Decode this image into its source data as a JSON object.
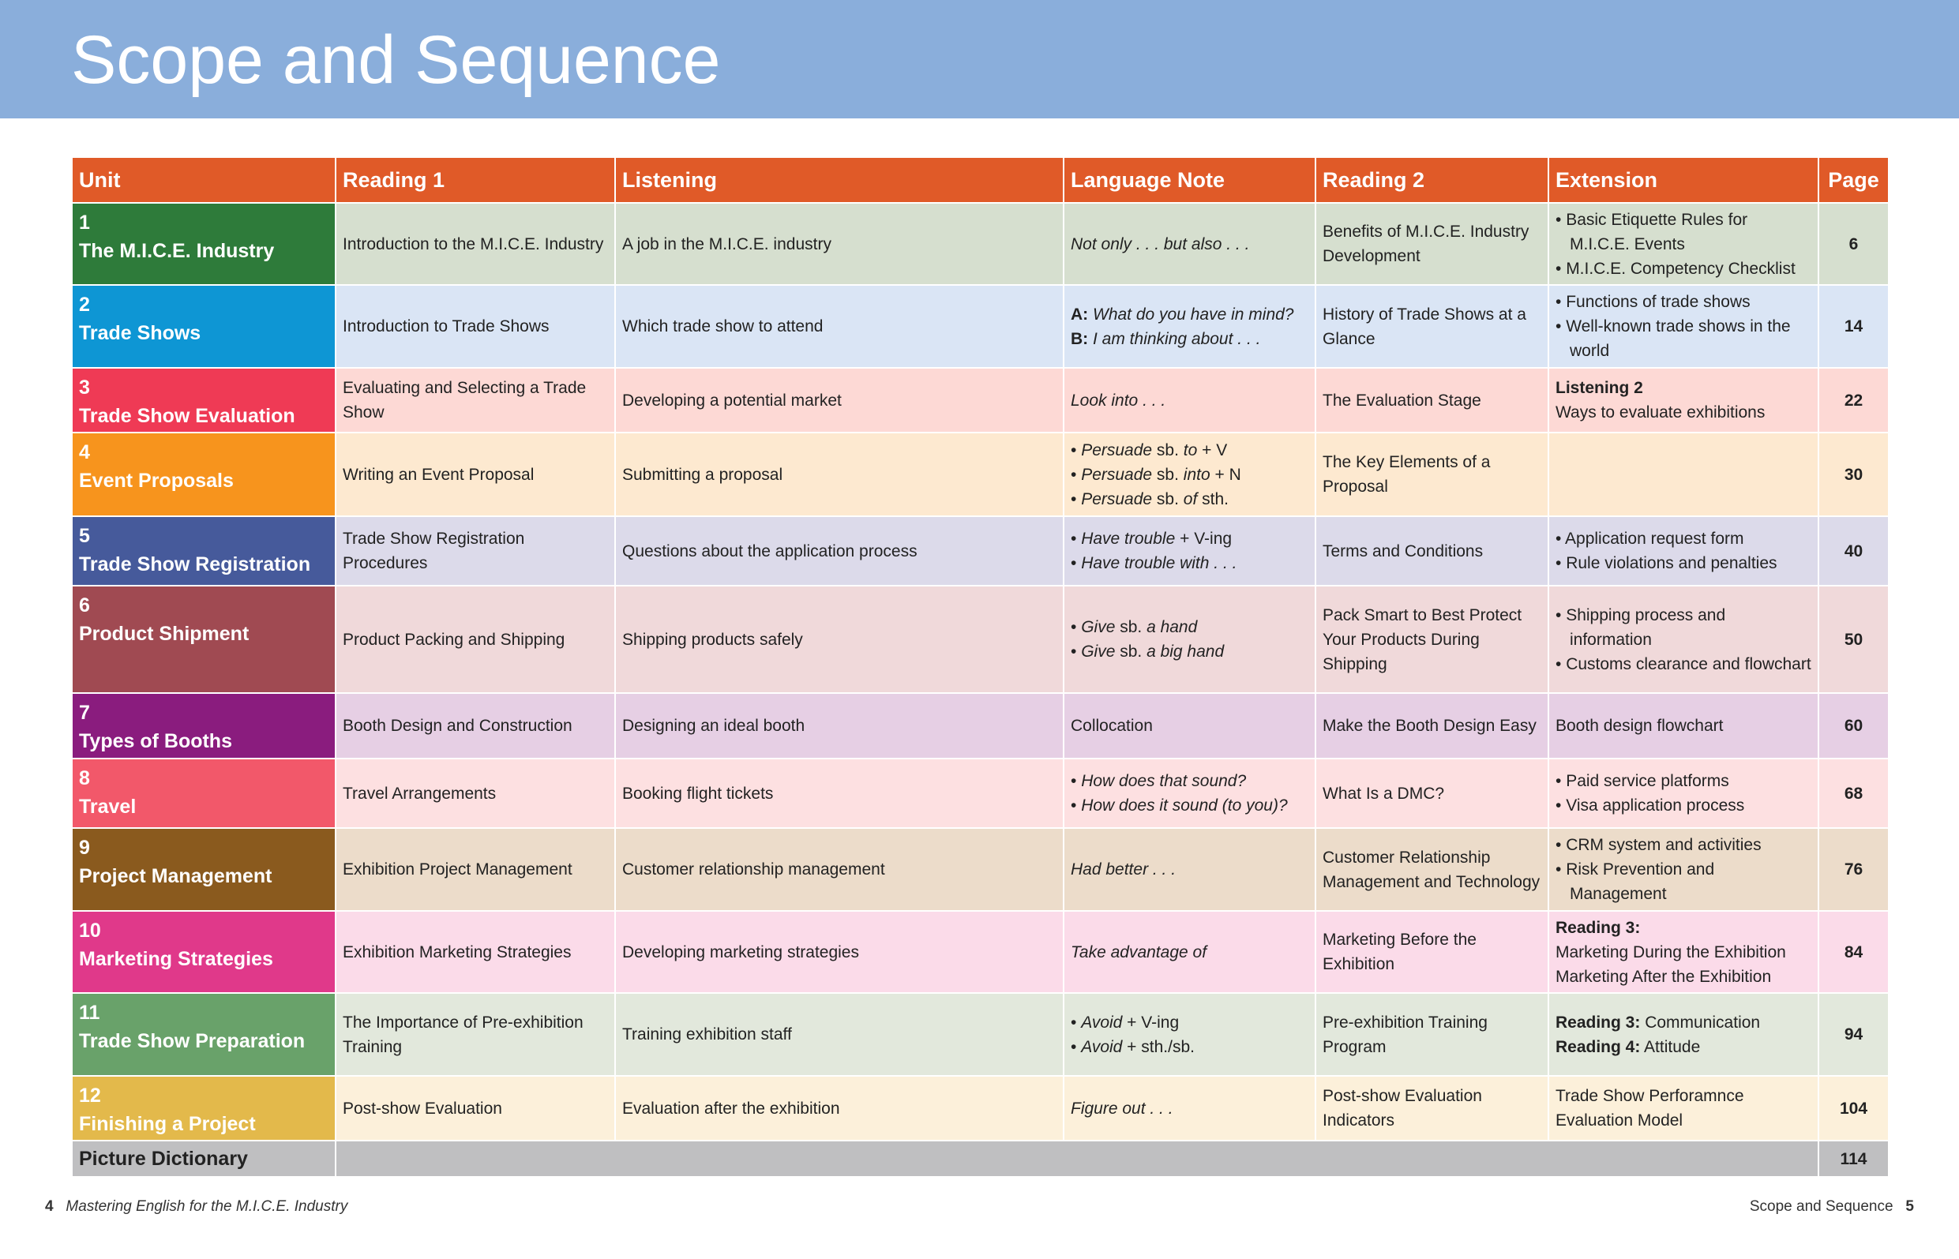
{
  "title": "Scope and Sequence",
  "headers": [
    "Unit",
    "Reading 1",
    "Listening",
    "Language Note",
    "Reading 2",
    "Extension",
    "Page"
  ],
  "rows": [
    {
      "num": "1",
      "name": "The M.I.C.E. Industry",
      "color": "#2e7b3a",
      "bg": "#d6dfcf",
      "r1": "Introduction to the M.I.C.E. Industry",
      "listen": "A job in the M.I.C.E. industry",
      "note": [
        {
          "seg": [
            [
              "Not only . . . but also . . .",
              "i"
            ]
          ]
        }
      ],
      "r2": "Benefits of M.I.C.E. Industry Development",
      "ext": [
        {
          "bullet": true,
          "seg": [
            [
              "Basic Etiquette Rules for M.I.C.E. Events",
              ""
            ]
          ]
        },
        {
          "bullet": true,
          "seg": [
            [
              "M.I.C.E. Competency Checklist",
              ""
            ]
          ]
        }
      ],
      "page": "6"
    },
    {
      "num": "2",
      "name": "Trade Shows",
      "color": "#0e96d4",
      "bg": "#dae5f5",
      "r1": "Introduction to Trade Shows",
      "listen": "Which trade show to attend",
      "note": [
        {
          "seg": [
            [
              "A: ",
              "b"
            ],
            [
              "What do you have in mind?",
              "i"
            ]
          ]
        },
        {
          "seg": [
            [
              "B: ",
              "b"
            ],
            [
              "I am thinking about . . .",
              "i"
            ]
          ]
        }
      ],
      "r2": "History of Trade Shows at a Glance",
      "ext": [
        {
          "bullet": true,
          "seg": [
            [
              "Functions of trade shows",
              ""
            ]
          ]
        },
        {
          "bullet": true,
          "seg": [
            [
              "Well-known trade shows in the world",
              ""
            ]
          ]
        }
      ],
      "page": "14"
    },
    {
      "num": "3",
      "name": "Trade Show Evaluation",
      "color": "#ef3a55",
      "bg": "#fdd9d5",
      "r1": "Evaluating and Selecting a Trade Show",
      "listen": "Developing a potential market",
      "note": [
        {
          "seg": [
            [
              "Look into . . .",
              "i"
            ]
          ]
        }
      ],
      "r2": "The Evaluation Stage",
      "ext": [
        {
          "seg": [
            [
              "Listening 2",
              "b"
            ]
          ]
        },
        {
          "seg": [
            [
              "Ways to evaluate exhibitions",
              ""
            ]
          ]
        }
      ],
      "page": "22"
    },
    {
      "num": "4",
      "name": "Event Proposals",
      "color": "#f7941d",
      "bg": "#fde9d0",
      "r1": "Writing an Event Proposal",
      "listen": "Submitting a proposal",
      "note": [
        {
          "bullet": true,
          "seg": [
            [
              "Persuade",
              "i"
            ],
            [
              " sb. ",
              ""
            ],
            [
              "to",
              "i"
            ],
            [
              " + V",
              ""
            ]
          ]
        },
        {
          "bullet": true,
          "seg": [
            [
              "Persuade",
              "i"
            ],
            [
              " sb. ",
              ""
            ],
            [
              "into",
              "i"
            ],
            [
              " + N",
              ""
            ]
          ]
        },
        {
          "bullet": true,
          "seg": [
            [
              "Persuade",
              "i"
            ],
            [
              " sb. ",
              ""
            ],
            [
              "of",
              "i"
            ],
            [
              " sth.",
              ""
            ]
          ]
        }
      ],
      "r2": "The Key Elements of a Proposal",
      "ext": [],
      "page": "30"
    },
    {
      "num": "5",
      "name": "Trade Show Registration",
      "color": "#465a9b",
      "bg": "#dcdaea",
      "r1": "Trade Show Registration Procedures",
      "listen": "Questions about the application process",
      "note": [
        {
          "bullet": true,
          "seg": [
            [
              "Have trouble",
              "i"
            ],
            [
              " + V-ing",
              ""
            ]
          ]
        },
        {
          "bullet": true,
          "seg": [
            [
              "Have trouble with . . .",
              "i"
            ]
          ]
        }
      ],
      "r2": "Terms and Conditions",
      "ext": [
        {
          "bullet": true,
          "seg": [
            [
              "Application request form",
              ""
            ]
          ]
        },
        {
          "bullet": true,
          "seg": [
            [
              "Rule violations and penalties",
              ""
            ]
          ]
        }
      ],
      "page": "40"
    },
    {
      "num": "6",
      "name": "Product Shipment",
      "color": "#a04a52",
      "bg": "#f0d9da",
      "r1": "Product Packing and Shipping",
      "listen": "Shipping products safely",
      "note": [
        {
          "bullet": true,
          "seg": [
            [
              "Give",
              "i"
            ],
            [
              " sb. ",
              ""
            ],
            [
              "a hand",
              "i"
            ]
          ]
        },
        {
          "bullet": true,
          "seg": [
            [
              "Give",
              "i"
            ],
            [
              " sb. ",
              ""
            ],
            [
              "a big hand",
              "i"
            ]
          ]
        }
      ],
      "r2": "Pack Smart to Best Protect Your Products During Shipping",
      "ext": [
        {
          "bullet": true,
          "seg": [
            [
              "Shipping process and information",
              ""
            ]
          ]
        },
        {
          "bullet": true,
          "seg": [
            [
              "Customs clearance and flowchart",
              ""
            ]
          ]
        }
      ],
      "page": "50"
    },
    {
      "num": "7",
      "name": "Types of Booths",
      "color": "#8a1c7e",
      "bg": "#e6cfe4",
      "r1": "Booth Design and Construction",
      "listen": "Designing an ideal booth",
      "note": [
        {
          "seg": [
            [
              "Collocation",
              ""
            ]
          ]
        }
      ],
      "r2": "Make the Booth Design Easy",
      "ext": [
        {
          "seg": [
            [
              "Booth design flowchart",
              ""
            ]
          ]
        }
      ],
      "page": "60"
    },
    {
      "num": "8",
      "name": "Travel",
      "color": "#f2586a",
      "bg": "#fde0e1",
      "r1": "Travel Arrangements",
      "listen": "Booking flight tickets",
      "note": [
        {
          "bullet": true,
          "seg": [
            [
              "How does that sound?",
              "i"
            ]
          ]
        },
        {
          "bullet": true,
          "seg": [
            [
              "How does it sound (to you)?",
              "i"
            ]
          ]
        }
      ],
      "r2": "What Is a DMC?",
      "ext": [
        {
          "bullet": true,
          "seg": [
            [
              "Paid service platforms",
              ""
            ]
          ]
        },
        {
          "bullet": true,
          "seg": [
            [
              "Visa application process",
              ""
            ]
          ]
        }
      ],
      "page": "68"
    },
    {
      "num": "9",
      "name": "Project Management",
      "color": "#8a5a1e",
      "bg": "#ecdcca",
      "r1": "Exhibition Project Management",
      "listen": "Customer relationship management",
      "note": [
        {
          "seg": [
            [
              "Had better . . .",
              "i"
            ]
          ]
        }
      ],
      "r2": "Customer Relationship Management and Technology",
      "ext": [
        {
          "bullet": true,
          "seg": [
            [
              "CRM system and activities",
              ""
            ]
          ]
        },
        {
          "bullet": true,
          "seg": [
            [
              "Risk Prevention and Management",
              ""
            ]
          ]
        }
      ],
      "page": "76"
    },
    {
      "num": "10",
      "name": "Marketing Strategies",
      "color": "#e0398a",
      "bg": "#fbdbe9",
      "r1": "Exhibition Marketing Strategies",
      "listen": "Developing marketing strategies",
      "note": [
        {
          "seg": [
            [
              "Take advantage of",
              "i"
            ]
          ]
        }
      ],
      "r2": "Marketing Before the Exhibition",
      "ext": [
        {
          "seg": [
            [
              "Reading 3:",
              "b"
            ]
          ]
        },
        {
          "seg": [
            [
              "Marketing During the Exhibition",
              ""
            ]
          ]
        },
        {
          "seg": [
            [
              "Marketing After the Exhibition",
              ""
            ]
          ]
        }
      ],
      "page": "84"
    },
    {
      "num": "11",
      "name": "Trade Show Preparation",
      "color": "#69a26a",
      "bg": "#e2e8dc",
      "r1": "The Importance of Pre-exhibition Training",
      "listen": "Training exhibition staff",
      "note": [
        {
          "bullet": true,
          "seg": [
            [
              "Avoid",
              "i"
            ],
            [
              " + V-ing",
              ""
            ]
          ]
        },
        {
          "bullet": true,
          "seg": [
            [
              "Avoid",
              "i"
            ],
            [
              " + sth./sb.",
              ""
            ]
          ]
        }
      ],
      "r2": "Pre-exhibition Training Program",
      "ext": [
        {
          "seg": [
            [
              "Reading 3:",
              "b"
            ],
            [
              " Communication",
              ""
            ]
          ]
        },
        {
          "seg": [
            [
              "Reading 4:",
              "b"
            ],
            [
              " Attitude",
              ""
            ]
          ]
        }
      ],
      "page": "94"
    },
    {
      "num": "12",
      "name": "Finishing a Project",
      "color": "#e3b94b",
      "bg": "#fcf0da",
      "r1": "Post-show Evaluation",
      "listen": "Evaluation after the exhibition",
      "note": [
        {
          "seg": [
            [
              "Figure out . . .",
              "i"
            ]
          ]
        }
      ],
      "r2": "Post-show Evaluation Indicators",
      "ext": [
        {
          "seg": [
            [
              "Trade Show Perforamnce Evaluation Model",
              ""
            ]
          ]
        }
      ],
      "page": "104"
    }
  ],
  "dictionary": {
    "label": "Picture Dictionary",
    "page": "114"
  },
  "footer": {
    "left_page": "4",
    "left_title": "Mastering English for the M.I.C.E. Industry",
    "right_title": "Scope and Sequence",
    "right_page": "5"
  }
}
